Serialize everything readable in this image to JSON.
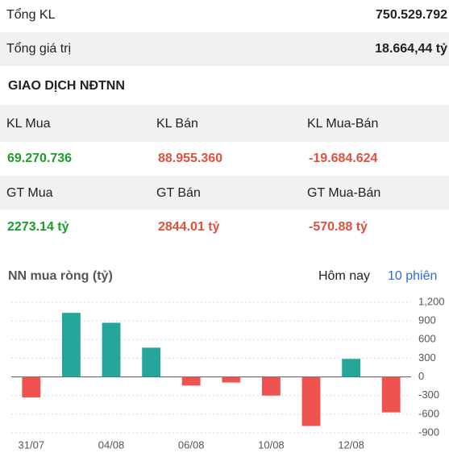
{
  "summary": [
    {
      "label": "Tổng KL",
      "value": "750.529.792"
    },
    {
      "label": "Tổng giá trị",
      "value": "18.664,44 tỷ"
    }
  ],
  "section_title": "GIAO DỊCH NĐTNN",
  "volume": [
    {
      "label": "KL Mua",
      "value": "69.270.736"
    },
    {
      "label": "KL Bán",
      "value": "88.955.360"
    },
    {
      "label": "KL Mua-Bán",
      "value": "-19.684.624"
    }
  ],
  "amount": [
    {
      "label": "GT Mua",
      "value": "2273.14 tỷ"
    },
    {
      "label": "GT Bán",
      "value": "2844.01 tỷ"
    },
    {
      "label": "GT Mua-Bán",
      "value": "-570.88 tỷ"
    }
  ],
  "tabs": [
    "Hôm nay",
    "10 phiên"
  ],
  "chart_data": {
    "type": "bar",
    "title": "NN mua ròng (tỷ)",
    "categories": [
      "31/07",
      null,
      "04/08",
      null,
      "06/08",
      null,
      "10/08",
      null,
      "12/08",
      null
    ],
    "values": [
      -330,
      1030,
      870,
      470,
      -140,
      -90,
      -300,
      -790,
      290,
      -571
    ],
    "positive_color": "#26a69a",
    "negative_color": "#ef5350",
    "ylim": [
      -900,
      1200
    ],
    "yticks": [
      {
        "value": 1200,
        "label": "1,200"
      },
      900,
      600,
      300,
      0,
      -300,
      -600,
      -900
    ],
    "grid": true
  }
}
